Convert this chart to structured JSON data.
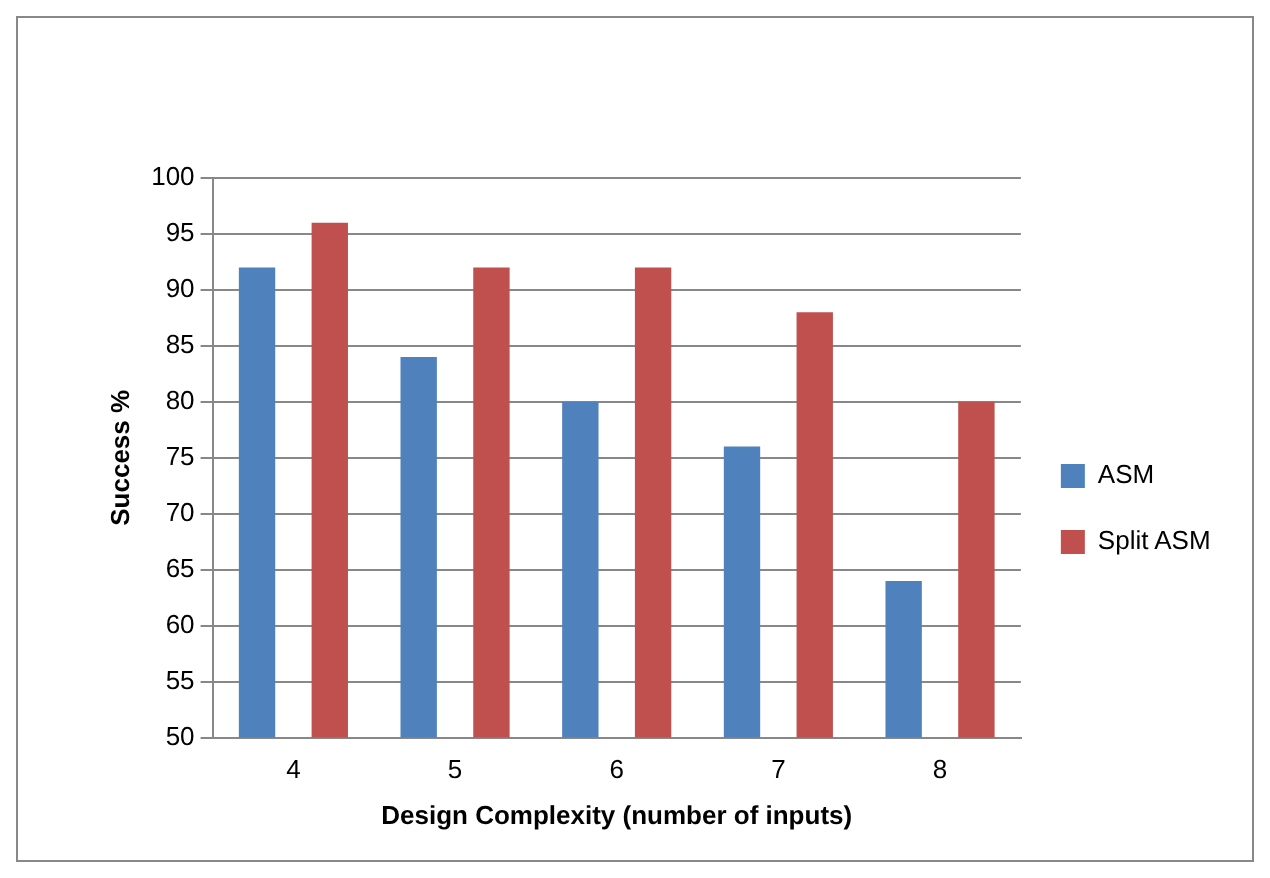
{
  "chart_data": {
    "type": "bar",
    "xlabel": "Design Complexity (number of inputs)",
    "ylabel": "Success %",
    "categories": [
      "4",
      "5",
      "6",
      "7",
      "8"
    ],
    "series": [
      {
        "name": "ASM",
        "color": "#4f81bd",
        "values": [
          92,
          84,
          80,
          76,
          64
        ]
      },
      {
        "name": "Split ASM",
        "color": "#c0504d",
        "values": [
          96,
          92,
          92,
          88,
          80
        ]
      }
    ],
    "ylim": [
      50,
      100
    ],
    "yticks": [
      50,
      55,
      60,
      65,
      70,
      75,
      80,
      85,
      90,
      95,
      100
    ],
    "grid": "y",
    "legend": "right"
  }
}
